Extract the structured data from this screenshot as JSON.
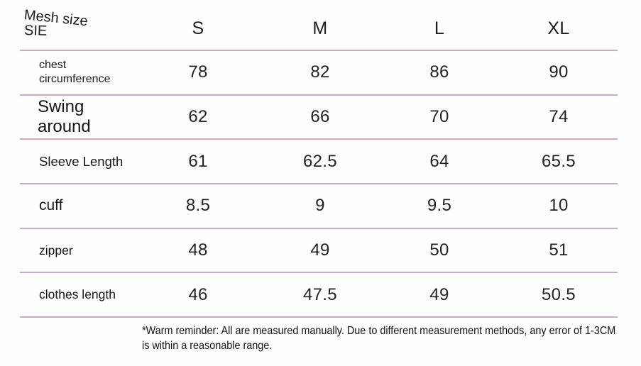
{
  "header": {
    "title_line1": "Mesh size",
    "title_line2": "SIE"
  },
  "note": {
    "text": "*Warm reminder: All are measured manually. Due to different measurement methods, any error of 1-3CM is within a reasonable range."
  },
  "colors": {
    "divider_pink": "#d2a6c4",
    "text": "#1f1f1f",
    "background": "#ffffff"
  },
  "chart_data": {
    "type": "table",
    "title": "Mesh size SIE",
    "columns": [
      "S",
      "M",
      "L",
      "XL"
    ],
    "rows": [
      {
        "label": "chest circumference",
        "values": [
          "78",
          "82",
          "86",
          "90"
        ]
      },
      {
        "label": "Swing around",
        "values": [
          "62",
          "66",
          "70",
          "74"
        ]
      },
      {
        "label": "Sleeve Length",
        "values": [
          "61",
          "62.5",
          "64",
          "65.5"
        ]
      },
      {
        "label": "cuff",
        "values": [
          "8.5",
          "9",
          "9.5",
          "10"
        ]
      },
      {
        "label": "zipper",
        "values": [
          "48",
          "49",
          "50",
          "51"
        ]
      },
      {
        "label": "clothes length",
        "values": [
          "46",
          "47.5",
          "49",
          "50.5"
        ]
      }
    ],
    "layout": {
      "grid": "horizontal pink dividers between rows",
      "legend": "none"
    }
  }
}
